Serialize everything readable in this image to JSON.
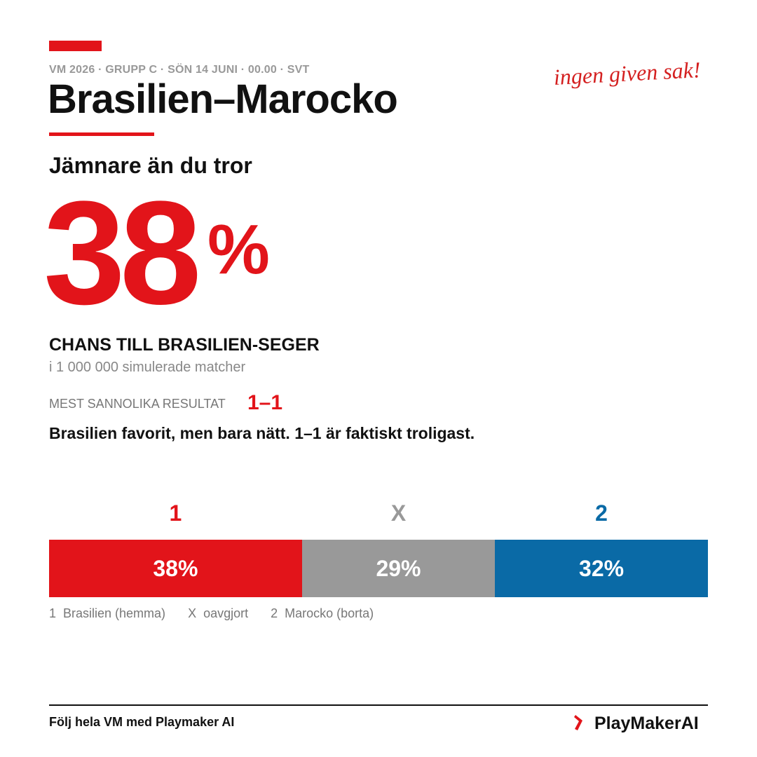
{
  "header": {
    "meta": "VM 2026 · GRUPP C · SÖN 14 JUNI · 00.00 · SVT",
    "title": "Brasilien–Marocko",
    "tagline": "ingen given sak!"
  },
  "subtitle": "Jämnare än du tror",
  "big_stat": {
    "number": "38",
    "unit": "%",
    "label": "CHANS TILL BRASILIEN-SEGER",
    "note": "i 1 000 000 simulerade matcher"
  },
  "result": {
    "label": "MEST SANNOLIKA RESULTAT",
    "score": "1–1"
  },
  "summary": "Brasilien favorit, men bara nätt. 1–1 är faktiskt troligast.",
  "bar": {
    "segments": [
      {
        "key": "1",
        "value": 38,
        "label": "38%",
        "color": "#e2141a"
      },
      {
        "key": "X",
        "value": 29,
        "label": "29%",
        "color": "#999999"
      },
      {
        "key": "2",
        "value": 32,
        "label": "32%",
        "color": "#0a6aa6"
      }
    ]
  },
  "legend": [
    {
      "key": "1",
      "text": "Brasilien (hemma)"
    },
    {
      "key": "X",
      "text": "oavgjort"
    },
    {
      "key": "2",
      "text": "Marocko (borta)"
    }
  ],
  "footer": {
    "text": "Följ hela VM med Playmaker AI",
    "brand": "PlayMakerAI"
  }
}
